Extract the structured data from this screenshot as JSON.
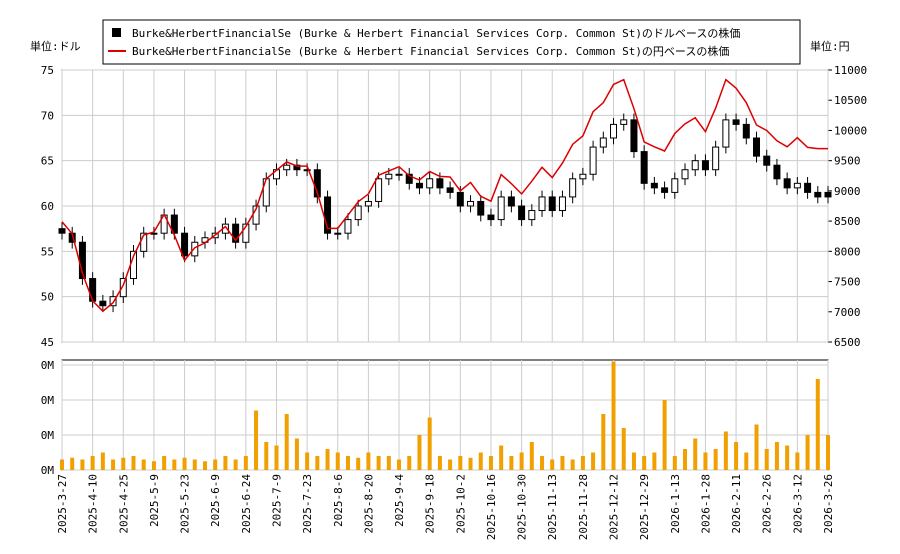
{
  "chart_data": {
    "type": "candlestick",
    "legend_loc": "upper center",
    "grid": true,
    "y_label": "単位:ドル",
    "y2_label": "単位:円",
    "categories": [
      "2025-3-27",
      null,
      null,
      "2025-4-10",
      null,
      null,
      "2025-4-25",
      null,
      null,
      "2025-5-9",
      null,
      null,
      "2025-5-23",
      null,
      null,
      "2025-6-9",
      null,
      null,
      "2025-6-24",
      null,
      null,
      "2025-7-9",
      null,
      null,
      "2025-7-23",
      null,
      null,
      "2025-8-6",
      null,
      null,
      "2025-8-20",
      null,
      null,
      "2025-9-4",
      null,
      null,
      "2025-9-18",
      null,
      null,
      "2025-10-2",
      null,
      null,
      "2025-10-16",
      null,
      null,
      "2025-10-30",
      null,
      null,
      "2025-11-13",
      null,
      null,
      "2025-11-28",
      null,
      null,
      "2025-12-12",
      null,
      null,
      "2025-12-29",
      null,
      null,
      "2026-1-13",
      null,
      null,
      "2026-1-28",
      null,
      null,
      "2026-2-11",
      null,
      null,
      "2026-2-26",
      null,
      null,
      "2026-3-12",
      null,
      null,
      "2026-3-26"
    ],
    "ylim": [
      45,
      75
    ],
    "yticks": [
      45,
      50,
      55,
      60,
      65,
      70,
      75
    ],
    "y2lim": [
      6500,
      11000
    ],
    "y2ticks": [
      6500,
      7000,
      7500,
      8000,
      8500,
      9000,
      9500,
      10000,
      10500,
      11000
    ],
    "series": [
      {
        "name": "Burke&HerbertFinancialSe (Burke & Herbert Financial Services Corp. Common St)のドルベースの株価",
        "color": "#000000",
        "open": [
          57.5,
          57,
          56,
          52,
          49.5,
          49,
          50,
          52,
          55,
          57,
          57,
          59,
          57,
          54.5,
          56,
          56.5,
          57,
          58,
          56,
          58,
          60,
          63,
          64,
          64.5,
          64,
          64,
          61,
          57,
          57,
          58.5,
          60,
          60.5,
          63,
          63.5,
          63.5,
          62.5,
          62,
          63,
          62,
          61.5,
          60,
          60.5,
          59,
          58.5,
          61,
          60,
          58.5,
          59.5,
          61,
          59.5,
          61,
          63,
          63.5,
          66.5,
          67.5,
          69,
          69.5,
          66,
          62.5,
          62,
          61.5,
          63,
          64,
          65,
          64,
          66.5,
          69.5,
          69,
          67.5,
          65.5,
          64.5,
          63,
          62,
          62.5,
          61.5,
          61.5
        ],
        "high": [
          58.2,
          57.7,
          56.7,
          52.7,
          50.2,
          50.7,
          52.7,
          55.7,
          57.7,
          57.7,
          59.7,
          59.7,
          57.7,
          56.7,
          57.2,
          57.7,
          58.7,
          58.7,
          58.7,
          60.7,
          63.7,
          64.7,
          65.2,
          65.2,
          64.7,
          64.7,
          61.7,
          57.7,
          59.2,
          60.7,
          61.2,
          63.7,
          64.2,
          64.2,
          64.2,
          63.2,
          63.7,
          63.7,
          62.7,
          62.2,
          61.2,
          61.2,
          59.7,
          61.7,
          61.7,
          60.7,
          60.2,
          61.7,
          61.7,
          61.7,
          63.7,
          64.2,
          67.2,
          68.2,
          69.7,
          70.2,
          70.2,
          66.7,
          63.2,
          62.7,
          63.7,
          64.7,
          65.7,
          65.7,
          67.2,
          70.2,
          70.2,
          69.7,
          68.2,
          66.2,
          65.2,
          63.7,
          63.2,
          63.2,
          62.2,
          62.2
        ],
        "low": [
          56.3,
          55.3,
          51.3,
          48.8,
          48.3,
          48.3,
          49.3,
          51.3,
          54.3,
          56.3,
          56.3,
          56.3,
          53.8,
          53.8,
          55.3,
          55.8,
          56.3,
          55.3,
          55.3,
          57.3,
          59.3,
          62.3,
          63.3,
          63.3,
          63.3,
          60.3,
          56.3,
          56.3,
          56.3,
          57.8,
          59.3,
          59.8,
          62.3,
          62.8,
          61.8,
          61.3,
          61.3,
          61.3,
          60.8,
          59.3,
          59.3,
          58.3,
          57.8,
          57.8,
          59.3,
          57.8,
          57.8,
          58.8,
          58.8,
          58.8,
          60.3,
          62.3,
          62.8,
          65.8,
          66.8,
          68.3,
          65.3,
          61.8,
          61.3,
          60.8,
          60.8,
          62.3,
          63.3,
          63.3,
          63.3,
          65.8,
          68.3,
          66.8,
          64.8,
          63.8,
          62.3,
          61.3,
          61.3,
          60.8,
          60.3,
          60.3
        ],
        "close": [
          57,
          56,
          52,
          49.5,
          49,
          50,
          52,
          55,
          57,
          57,
          59,
          57,
          54.5,
          56,
          56.5,
          57,
          58,
          56,
          58,
          60,
          63,
          64,
          64.5,
          64,
          64,
          61,
          57,
          57,
          58.5,
          60,
          60.5,
          63,
          63.5,
          63.5,
          62.5,
          62,
          63,
          62,
          61.5,
          60,
          60.5,
          59,
          58.5,
          61,
          60,
          58.5,
          59.5,
          61,
          59.5,
          61,
          63,
          63.5,
          66.5,
          67.5,
          69,
          69.5,
          66,
          62.5,
          62,
          61.5,
          63,
          64,
          65,
          64,
          66.5,
          69.5,
          69,
          67.5,
          65.5,
          64.5,
          63,
          62,
          62.5,
          61.5,
          61,
          61
        ]
      },
      {
        "name": "Burke&HerbertFinancialSe (Burke & Herbert Financial Services Corp. Common St)の円ベースの株価",
        "color": "#dd0000",
        "axis": "y2",
        "values": [
          8490,
          8290,
          7640,
          7180,
          7010,
          7150,
          7440,
          7920,
          8270,
          8320,
          8610,
          8270,
          7850,
          8060,
          8140,
          8270,
          8410,
          8180,
          8410,
          8700,
          9200,
          9340,
          9480,
          9410,
          9410,
          8970,
          8380,
          8380,
          8600,
          8820,
          8950,
          9260,
          9330,
          9400,
          9250,
          9180,
          9320,
          9240,
          9230,
          9000,
          9140,
          8910,
          8830,
          9270,
          9120,
          8950,
          9160,
          9390,
          9220,
          9460,
          9770,
          9910,
          10310,
          10460,
          10760,
          10840,
          10360,
          9810,
          9730,
          9660,
          9950,
          10110,
          10210,
          9980,
          10370,
          10840,
          10700,
          10460,
          10090,
          10000,
          9830,
          9730,
          9880,
          9720,
          9700,
          9700
        ]
      }
    ],
    "volume": {
      "color": "#f0a000",
      "ylim": [
        0,
        0.3
      ],
      "yticks": [
        {
          "value": 0,
          "label": "0M"
        },
        {
          "value": 0.1,
          "label": "0M"
        },
        {
          "value": 0.2,
          "label": "0M"
        },
        {
          "value": 0.3,
          "label": "0M"
        }
      ],
      "values": [
        0.03,
        0.035,
        0.03,
        0.04,
        0.05,
        0.03,
        0.035,
        0.04,
        0.03,
        0.025,
        0.04,
        0.03,
        0.035,
        0.03,
        0.025,
        0.03,
        0.04,
        0.03,
        0.04,
        0.17,
        0.08,
        0.07,
        0.16,
        0.09,
        0.05,
        0.04,
        0.06,
        0.05,
        0.04,
        0.035,
        0.05,
        0.04,
        0.04,
        0.03,
        0.04,
        0.1,
        0.15,
        0.04,
        0.03,
        0.04,
        0.035,
        0.05,
        0.04,
        0.07,
        0.04,
        0.05,
        0.08,
        0.04,
        0.03,
        0.04,
        0.03,
        0.04,
        0.05,
        0.16,
        0.31,
        0.12,
        0.05,
        0.04,
        0.05,
        0.2,
        0.04,
        0.06,
        0.09,
        0.05,
        0.06,
        0.11,
        0.08,
        0.05,
        0.13,
        0.06,
        0.08,
        0.07,
        0.05,
        0.1,
        0.26,
        0.1
      ]
    }
  }
}
